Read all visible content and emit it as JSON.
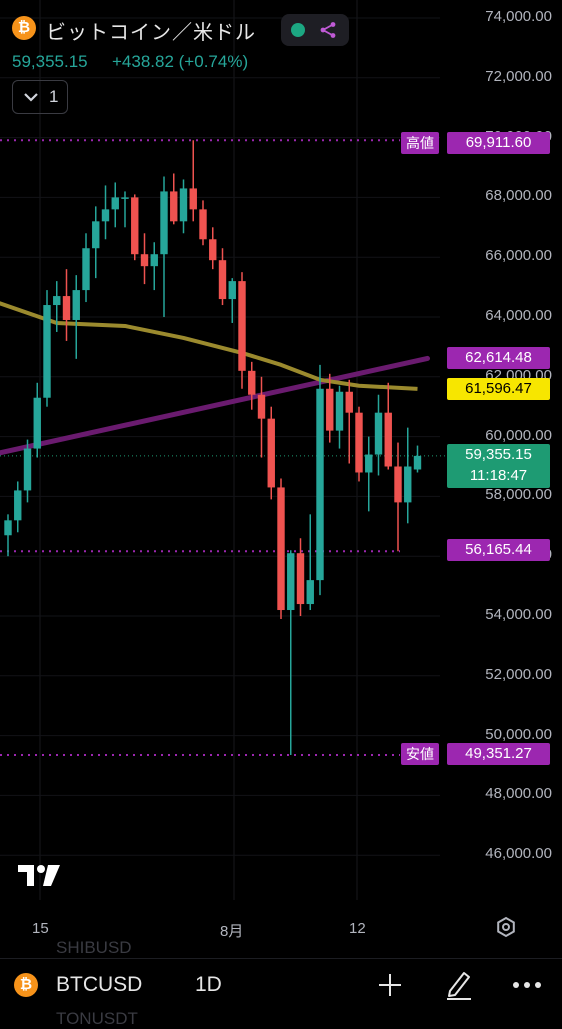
{
  "header": {
    "icon": "bitcoin-icon",
    "icon_glyph": "₿",
    "title": "ビットコイン／米ドル",
    "price": "59,355.15",
    "change": "+438.82 (+0.74%)",
    "collapse_label": "1"
  },
  "price_axis": [
    "74,000.00",
    "72,000.00",
    "70,000.00",
    "68,000.00",
    "66,000.00",
    "64,000.00",
    "62,000.00",
    "60,000.00",
    "58,000.00",
    "56,000.00",
    "54,000.00",
    "52,000.00",
    "50,000.00",
    "48,000.00",
    "46,000.00"
  ],
  "tags": {
    "high_label": "高値",
    "high_value": "69,911.60",
    "low_label": "安値",
    "low_value": "49,351.27",
    "line_purple": "62,614.48",
    "line_yellow": "61,596.47",
    "last_price": "59,355.15",
    "countdown": "11:18:47",
    "level": "56,165.44"
  },
  "x_axis": [
    "15",
    "8月",
    "12"
  ],
  "bottom": {
    "symbol": "BTCUSD",
    "interval": "1D",
    "ghost_symbol_top": "SHIBUSD",
    "ghost_symbol_bottom": "TONUSDT"
  },
  "colors": {
    "up": "#26a69a",
    "down": "#ef5350",
    "accent_purple": "#9c27b0",
    "ma_yellow": "#9b8a2e",
    "trend_purple": "#6a1b6f",
    "tag_yellow": "#f7e600",
    "tag_green": "#1e9b73"
  },
  "chart_data": {
    "type": "candlestick",
    "symbol": "BTCUSD",
    "interval": "1D",
    "ylim": [
      45000,
      75000
    ],
    "high_marker": 69911.6,
    "low_marker": 49351.27,
    "candles": [
      {
        "o": 56700,
        "h": 57400,
        "l": 56000,
        "c": 57200
      },
      {
        "o": 57200,
        "h": 58500,
        "l": 56800,
        "c": 58200
      },
      {
        "o": 58200,
        "h": 59900,
        "l": 57800,
        "c": 59600
      },
      {
        "o": 59600,
        "h": 61800,
        "l": 59300,
        "c": 61300
      },
      {
        "o": 61300,
        "h": 64900,
        "l": 61000,
        "c": 64400
      },
      {
        "o": 64400,
        "h": 65200,
        "l": 63500,
        "c": 64700
      },
      {
        "o": 64700,
        "h": 65600,
        "l": 63200,
        "c": 63900
      },
      {
        "o": 63900,
        "h": 65400,
        "l": 62600,
        "c": 64900
      },
      {
        "o": 64900,
        "h": 66800,
        "l": 64500,
        "c": 66300
      },
      {
        "o": 66300,
        "h": 67700,
        "l": 65300,
        "c": 67200
      },
      {
        "o": 67200,
        "h": 68400,
        "l": 66600,
        "c": 67600
      },
      {
        "o": 67600,
        "h": 68500,
        "l": 67000,
        "c": 68000
      },
      {
        "o": 68000,
        "h": 68200,
        "l": 67000,
        "c": 68000
      },
      {
        "o": 68000,
        "h": 68100,
        "l": 65900,
        "c": 66100
      },
      {
        "o": 66100,
        "h": 66800,
        "l": 65100,
        "c": 65700
      },
      {
        "o": 65700,
        "h": 66500,
        "l": 64900,
        "c": 66100
      },
      {
        "o": 66100,
        "h": 68700,
        "l": 64000,
        "c": 68200
      },
      {
        "o": 68200,
        "h": 68800,
        "l": 67100,
        "c": 67200
      },
      {
        "o": 67200,
        "h": 68600,
        "l": 66800,
        "c": 68300
      },
      {
        "o": 68300,
        "h": 69911.6,
        "l": 67200,
        "c": 67600
      },
      {
        "o": 67600,
        "h": 67900,
        "l": 66400,
        "c": 66600
      },
      {
        "o": 66600,
        "h": 67000,
        "l": 65600,
        "c": 65900
      },
      {
        "o": 65900,
        "h": 66300,
        "l": 64400,
        "c": 64600
      },
      {
        "o": 64600,
        "h": 65300,
        "l": 63800,
        "c": 65200
      },
      {
        "o": 65200,
        "h": 65500,
        "l": 61600,
        "c": 62200
      },
      {
        "o": 62200,
        "h": 62500,
        "l": 60900,
        "c": 61400
      },
      {
        "o": 61400,
        "h": 62000,
        "l": 59300,
        "c": 60600
      },
      {
        "o": 60600,
        "h": 61000,
        "l": 57900,
        "c": 58300
      },
      {
        "o": 58300,
        "h": 58600,
        "l": 53900,
        "c": 54200
      },
      {
        "o": 54200,
        "h": 56200,
        "l": 49351.27,
        "c": 56100
      },
      {
        "o": 56100,
        "h": 56600,
        "l": 54000,
        "c": 54400
      },
      {
        "o": 54400,
        "h": 57400,
        "l": 54200,
        "c": 55200
      },
      {
        "o": 55200,
        "h": 62400,
        "l": 54700,
        "c": 61600
      },
      {
        "o": 61600,
        "h": 62100,
        "l": 59800,
        "c": 60200
      },
      {
        "o": 60200,
        "h": 61700,
        "l": 59600,
        "c": 61500
      },
      {
        "o": 61500,
        "h": 61900,
        "l": 59100,
        "c": 60800
      },
      {
        "o": 60800,
        "h": 61000,
        "l": 58500,
        "c": 58800
      },
      {
        "o": 58800,
        "h": 60000,
        "l": 57500,
        "c": 59400
      },
      {
        "o": 59400,
        "h": 61400,
        "l": 58700,
        "c": 60800
      },
      {
        "o": 60800,
        "h": 61800,
        "l": 58900,
        "c": 59000
      },
      {
        "o": 59000,
        "h": 59800,
        "l": 56165.44,
        "c": 57800
      },
      {
        "o": 57800,
        "h": 60300,
        "l": 57100,
        "c": 59000
      },
      {
        "o": 58900,
        "h": 59700,
        "l": 58800,
        "c": 59355.15
      }
    ],
    "ma_line": [
      {
        "i": -3,
        "v": 64700
      },
      {
        "i": 5,
        "v": 63800
      },
      {
        "i": 12,
        "v": 63700
      },
      {
        "i": 18,
        "v": 63300
      },
      {
        "i": 24,
        "v": 62800
      },
      {
        "i": 28,
        "v": 62400
      },
      {
        "i": 32,
        "v": 61900
      },
      {
        "i": 36,
        "v": 61700
      },
      {
        "i": 42,
        "v": 61596.47
      }
    ],
    "trend_line": {
      "from": {
        "i": -3,
        "v": 59300
      },
      "to": {
        "i": 42,
        "v": 62614.48
      }
    },
    "levels": [
      {
        "label": "高値",
        "value": 69911.6
      },
      {
        "label": "",
        "value": 56165.44
      },
      {
        "label": "安値",
        "value": 49351.27
      }
    ]
  }
}
